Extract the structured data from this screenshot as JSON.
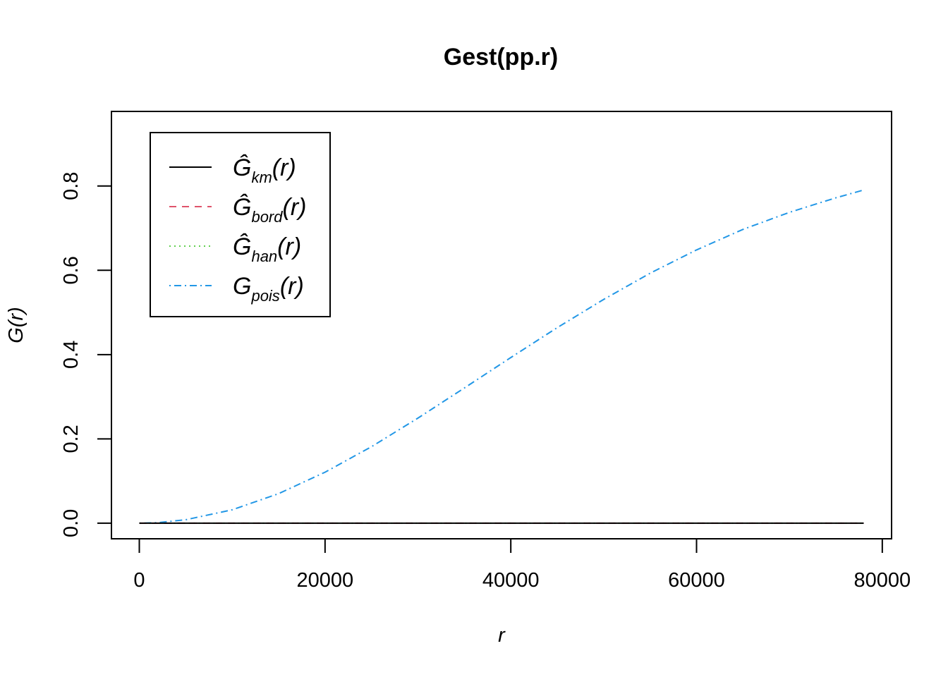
{
  "chart_data": {
    "type": "line",
    "title": "Gest(pp.r)",
    "xlabel": "r",
    "ylabel": "G(r)",
    "xlim": [
      -3000,
      81000
    ],
    "ylim": [
      -0.037,
      0.977
    ],
    "xticks": [
      0,
      20000,
      40000,
      60000,
      80000
    ],
    "xtick_labels": [
      "0",
      "20000",
      "40000",
      "60000",
      "80000"
    ],
    "yticks": [
      0.0,
      0.2,
      0.4,
      0.6,
      0.8
    ],
    "ytick_labels": [
      "0.0",
      "0.2",
      "0.4",
      "0.6",
      "0.8"
    ],
    "grid": false,
    "legend_position": "top-left",
    "series": [
      {
        "name": "Ĝkm(r)",
        "label_main": "Ĝ",
        "label_sub": "km",
        "label_tail": "(r)",
        "color": "#000000",
        "dash": "solid",
        "x": [
          0,
          10000,
          20000,
          30000,
          40000,
          50000,
          60000,
          70000,
          78000
        ],
        "y": [
          0,
          0,
          0,
          0,
          0,
          0,
          0,
          0,
          0
        ]
      },
      {
        "name": "Ĝbord(r)",
        "label_main": "Ĝ",
        "label_sub": "bord",
        "label_tail": "(r)",
        "color": "#DF536B",
        "dash": "dashed",
        "x": [
          0,
          10000,
          20000,
          30000,
          40000,
          50000,
          60000,
          70000,
          78000
        ],
        "y": [
          0,
          0,
          0,
          0,
          0,
          0,
          0,
          0,
          0
        ]
      },
      {
        "name": "Ĝhan(r)",
        "label_main": "Ĝ",
        "label_sub": "han",
        "label_tail": "(r)",
        "color": "#61D04F",
        "dash": "dotted",
        "x": [
          0,
          10000,
          20000,
          30000,
          40000,
          50000,
          60000,
          70000,
          78000
        ],
        "y": [
          0,
          0,
          0,
          0,
          0,
          0,
          0,
          0,
          0
        ]
      },
      {
        "name": "Gpois(r)",
        "label_main": "G",
        "label_sub": "pois",
        "label_tail": "(r)",
        "color": "#2297E6",
        "dash": "dotdash",
        "x": [
          0,
          2000,
          5000,
          10000,
          15000,
          20000,
          25000,
          30000,
          35000,
          40000,
          45000,
          50000,
          55000,
          60000,
          65000,
          70000,
          75000,
          78000
        ],
        "y": [
          0,
          0.0013,
          0.0081,
          0.0318,
          0.0701,
          0.1209,
          0.1816,
          0.2493,
          0.3207,
          0.3931,
          0.464,
          0.5309,
          0.5931,
          0.6484,
          0.697,
          0.7376,
          0.772,
          0.7906
        ]
      }
    ]
  }
}
